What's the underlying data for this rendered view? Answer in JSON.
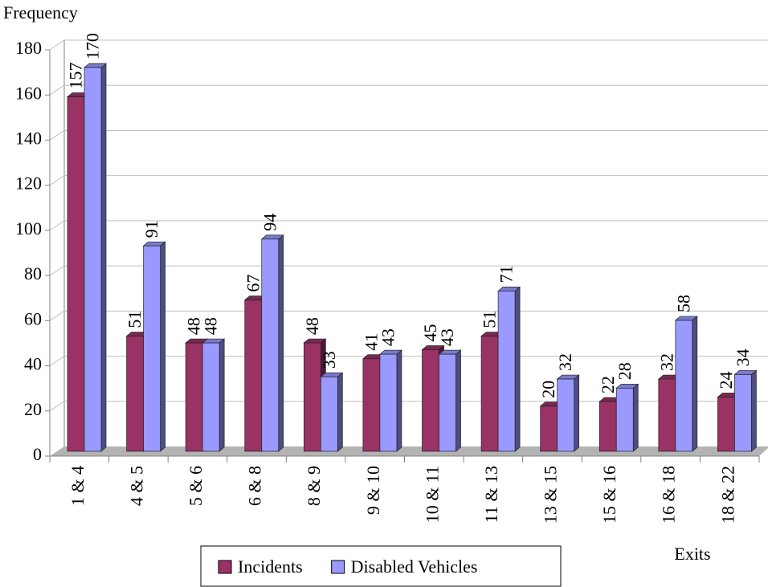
{
  "chart_data": {
    "type": "bar",
    "y_label": "Frequency",
    "x_label": "Exits",
    "categories": [
      "1 & 4",
      "4 & 5",
      "5 & 6",
      "6 & 8",
      "8 & 9",
      "9 & 10",
      "10 & 11",
      "11 & 13",
      "13 & 15",
      "15 & 16",
      "16 & 18",
      "18 & 22"
    ],
    "series": [
      {
        "name": "Incidents",
        "color": "#993366",
        "values": [
          157,
          51,
          48,
          67,
          48,
          41,
          45,
          51,
          20,
          22,
          32,
          24
        ]
      },
      {
        "name": "Disabled Vehicles",
        "color": "#9999ff",
        "values": [
          170,
          91,
          48,
          94,
          33,
          43,
          43,
          71,
          32,
          28,
          58,
          34
        ]
      }
    ],
    "ylim": [
      0,
      180
    ],
    "yticks": [
      0,
      20,
      40,
      60,
      80,
      100,
      120,
      140,
      160,
      180
    ],
    "grid": true
  }
}
